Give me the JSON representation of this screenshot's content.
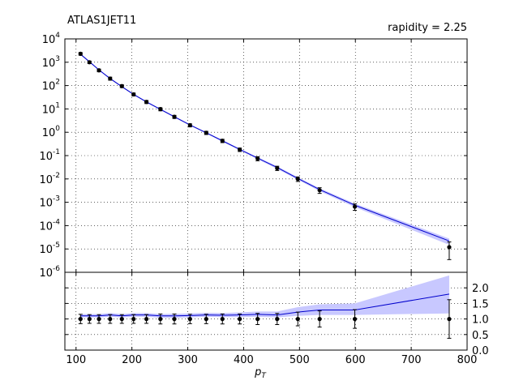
{
  "chart_data": [
    {
      "type": "line",
      "title": "ATLAS1JET11",
      "subtitle": "rapidity = 2.25",
      "yscale": "log",
      "ylim": [
        1e-06,
        10000.0
      ],
      "xlim": [
        80,
        800
      ],
      "grid": true,
      "yticks": [
        {
          "base": "10",
          "exp": "-6",
          "value": 1e-06
        },
        {
          "base": "10",
          "exp": "-5",
          "value": 1e-05
        },
        {
          "base": "10",
          "exp": "-4",
          "value": 0.0001
        },
        {
          "base": "10",
          "exp": "-3",
          "value": 0.001
        },
        {
          "base": "10",
          "exp": "-2",
          "value": 0.01
        },
        {
          "base": "10",
          "exp": "-1",
          "value": 0.1
        },
        {
          "base": "10",
          "exp": "0",
          "value": 1
        },
        {
          "base": "10",
          "exp": "1",
          "value": 10
        },
        {
          "base": "10",
          "exp": "2",
          "value": 100
        },
        {
          "base": "10",
          "exp": "3",
          "value": 1000
        },
        {
          "base": "10",
          "exp": "4",
          "value": 10000
        }
      ],
      "series": [
        {
          "kind": "theory",
          "color": "#0000cc",
          "band_color": "#c8c8ff",
          "x": [
            108,
            124,
            141,
            161,
            182,
            203,
            226,
            251,
            276,
            304,
            333,
            362,
            393,
            425,
            460,
            497,
            536,
            599,
            768
          ],
          "y": [
            2200,
            1050,
            470,
            200,
            90,
            42,
            20,
            9.6,
            4.6,
            2.05,
            0.95,
            0.43,
            0.185,
            0.078,
            0.031,
            0.0105,
            0.0035,
            0.00075,
            2.2e-05
          ],
          "ylow": [
            2050,
            980,
            440,
            186,
            84,
            39,
            18.5,
            8.9,
            4.25,
            1.9,
            0.88,
            0.395,
            0.168,
            0.07,
            0.027,
            0.0092,
            0.003,
            0.00062,
            1.5e-05
          ],
          "yhigh": [
            2350,
            1120,
            500,
            215,
            96,
            45,
            21.5,
            10.3,
            4.95,
            2.2,
            1.02,
            0.465,
            0.2,
            0.086,
            0.035,
            0.0118,
            0.004,
            0.00088,
            2.8e-05
          ]
        },
        {
          "kind": "data",
          "color": "#000000",
          "x": [
            108,
            124,
            141,
            161,
            182,
            203,
            226,
            251,
            276,
            304,
            333,
            362,
            393,
            425,
            460,
            497,
            536,
            599,
            768
          ],
          "y": [
            2300,
            1000,
            450,
            200,
            95,
            42,
            20,
            9.8,
            4.6,
            2.0,
            0.95,
            0.43,
            0.18,
            0.075,
            0.029,
            0.01,
            0.0033,
            0.00065,
            1.2e-05
          ],
          "ylow": [
            2000,
            880,
            390,
            170,
            82,
            36,
            17,
            8.3,
            3.9,
            1.7,
            0.8,
            0.36,
            0.15,
            0.06,
            0.023,
            0.0078,
            0.0024,
            0.00045,
            3.5e-06
          ],
          "yhigh": [
            2600,
            1120,
            510,
            230,
            108,
            48,
            23,
            11.3,
            5.3,
            2.3,
            1.1,
            0.5,
            0.21,
            0.09,
            0.035,
            0.0122,
            0.0042,
            0.00085,
            2e-05
          ]
        }
      ]
    },
    {
      "type": "line",
      "xlabel_base": "p",
      "xlabel_sub": "T",
      "ylim": [
        0,
        2.5
      ],
      "xlim": [
        80,
        800
      ],
      "grid": true,
      "xticks": [
        "100",
        "200",
        "300",
        "400",
        "500",
        "600",
        "700",
        "800"
      ],
      "yticks": [
        "0.0",
        "0.5",
        "1.0",
        "1.5",
        "2.0"
      ],
      "series": [
        {
          "kind": "theory-ratio",
          "color": "#0000cc",
          "band_color": "#c8c8ff",
          "x": [
            108,
            124,
            141,
            161,
            182,
            203,
            226,
            251,
            276,
            304,
            333,
            362,
            393,
            425,
            460,
            497,
            536,
            599,
            768
          ],
          "y": [
            1.1,
            1.1,
            1.1,
            1.13,
            1.1,
            1.13,
            1.13,
            1.1,
            1.1,
            1.11,
            1.13,
            1.12,
            1.13,
            1.15,
            1.13,
            1.22,
            1.29,
            1.29,
            1.8
          ],
          "ylow": [
            1.05,
            1.05,
            1.05,
            1.07,
            1.05,
            1.07,
            1.07,
            1.04,
            1.04,
            1.05,
            1.07,
            1.06,
            1.06,
            1.07,
            1.05,
            1.1,
            1.13,
            1.13,
            1.18
          ],
          "yhigh": [
            1.16,
            1.16,
            1.16,
            1.19,
            1.16,
            1.19,
            1.19,
            1.16,
            1.17,
            1.18,
            1.2,
            1.19,
            1.21,
            1.24,
            1.24,
            1.38,
            1.47,
            1.5,
            2.4
          ]
        },
        {
          "kind": "data-ratio",
          "color": "#000000",
          "x": [
            108,
            124,
            141,
            161,
            182,
            203,
            226,
            251,
            276,
            304,
            333,
            362,
            393,
            425,
            460,
            497,
            536,
            599,
            768
          ],
          "y": [
            1,
            1,
            1,
            1,
            1,
            1,
            1,
            1,
            1,
            1,
            1,
            1,
            1,
            1,
            1,
            1,
            1,
            1,
            1
          ],
          "ylow": [
            0.85,
            0.86,
            0.86,
            0.86,
            0.86,
            0.86,
            0.86,
            0.84,
            0.84,
            0.85,
            0.85,
            0.84,
            0.84,
            0.82,
            0.82,
            0.78,
            0.74,
            0.7,
            0.38
          ],
          "yhigh": [
            1.15,
            1.14,
            1.14,
            1.14,
            1.14,
            1.14,
            1.14,
            1.16,
            1.16,
            1.15,
            1.15,
            1.16,
            1.16,
            1.18,
            1.18,
            1.22,
            1.26,
            1.3,
            1.62
          ]
        }
      ]
    }
  ]
}
